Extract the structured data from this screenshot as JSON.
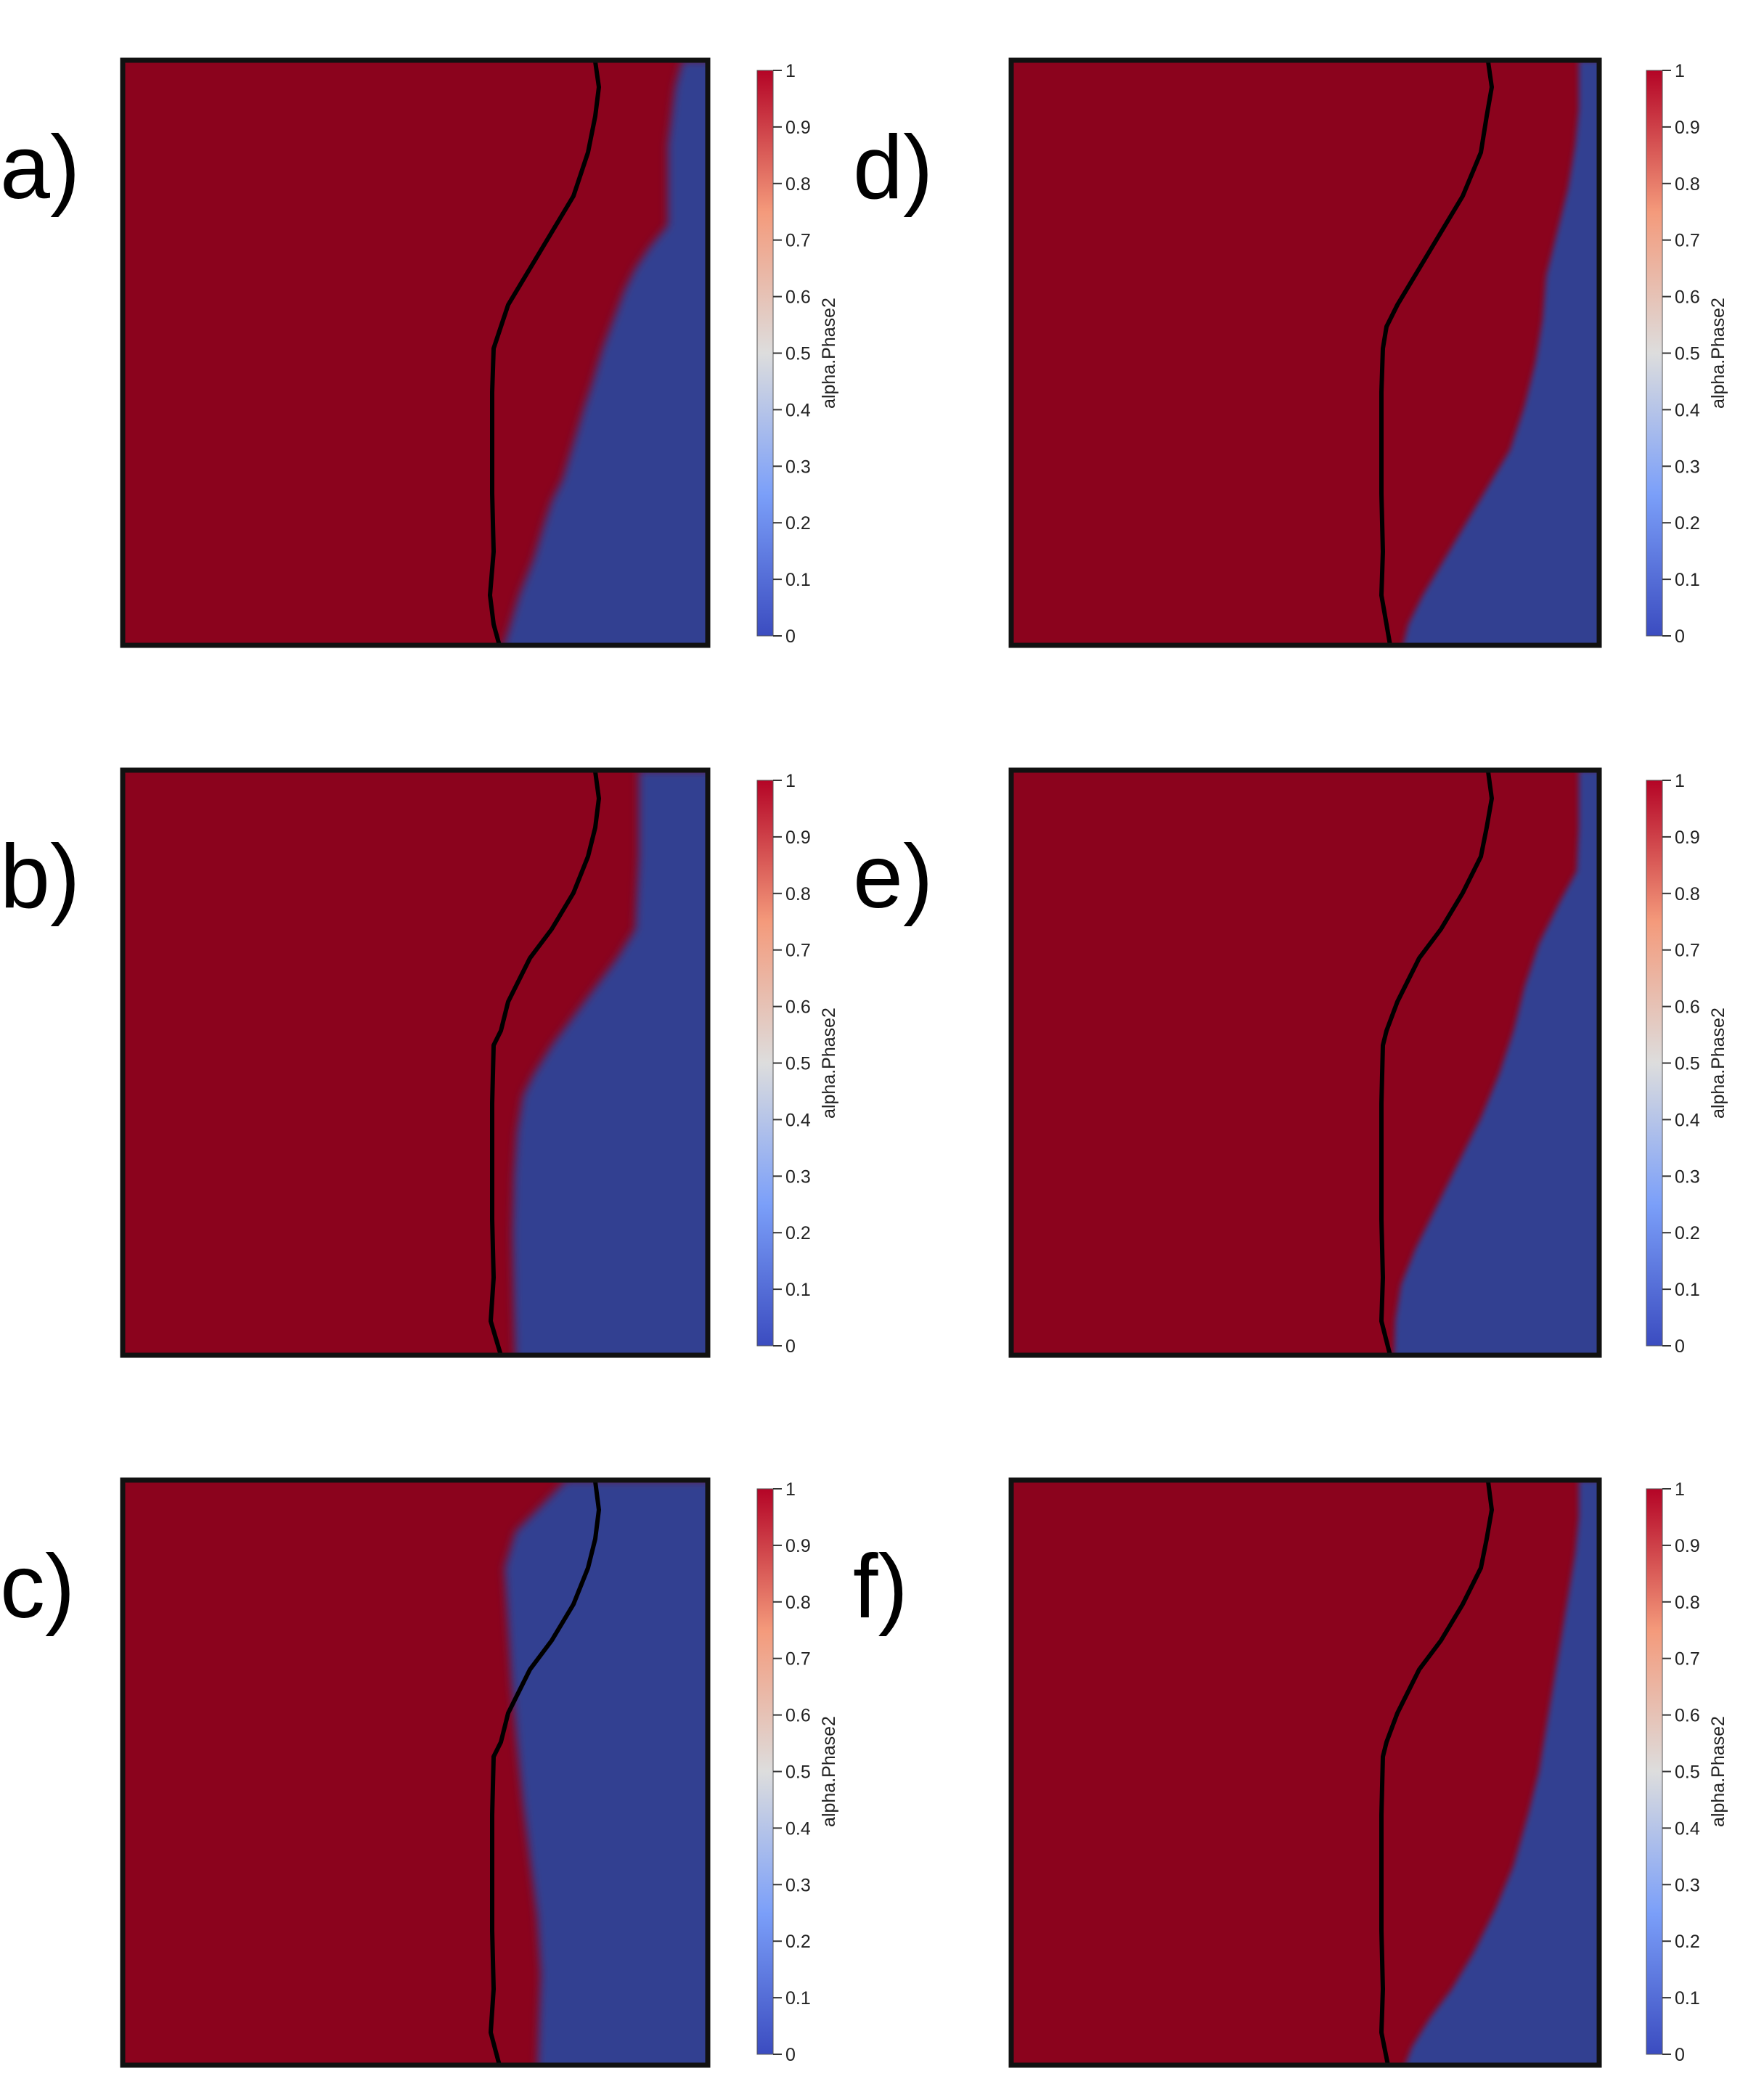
{
  "colorbar": {
    "title": "alpha.Phase2",
    "ticks": [
      "0",
      "0.1",
      "0.2",
      "0.3",
      "0.4",
      "0.5",
      "0.6",
      "0.7",
      "0.8",
      "0.9",
      "1"
    ],
    "colors": {
      "low": "#3b4cc0",
      "mid_low": "#aac7fd",
      "mid": "#dddddd",
      "mid_high": "#f7a889",
      "high": "#b40426"
    }
  },
  "colors": {
    "phase_one": "#8b031d",
    "phase_zero": "#313f91",
    "frame": "#111111",
    "contour": "#000000"
  },
  "panels": [
    {
      "label": "a)"
    },
    {
      "label": "b)"
    },
    {
      "label": "c)"
    },
    {
      "label": "d)"
    },
    {
      "label": "e)"
    },
    {
      "label": "f)"
    }
  ]
}
